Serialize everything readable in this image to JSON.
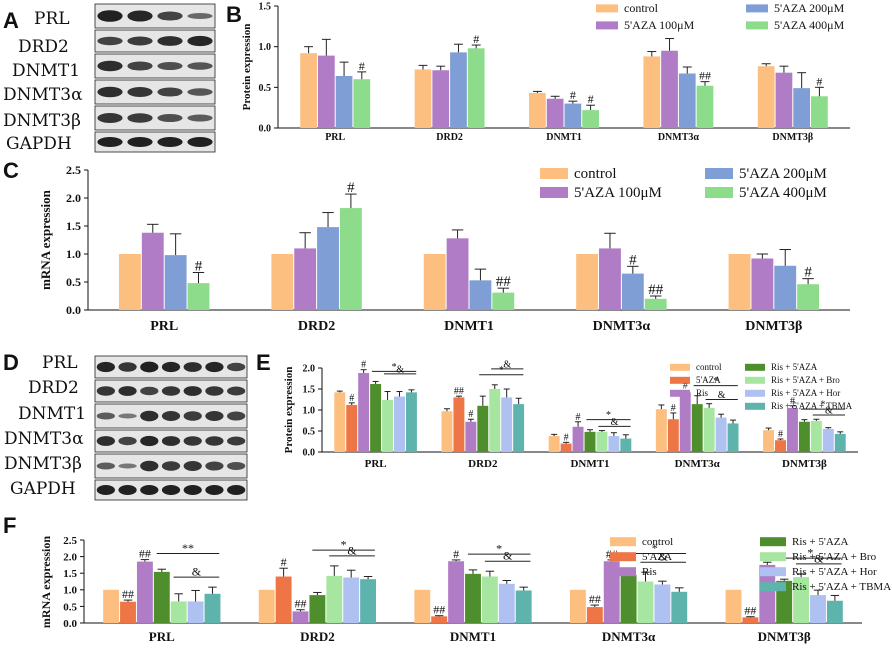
{
  "colors": {
    "control": "#fdbf7f",
    "aza": "#ee7546",
    "aza100": "#b07cc6",
    "ris": "#b07cc6",
    "aza200": "#7f9ed6",
    "aza400": "#8ddc8c",
    "ris_aza": "#4e8e2c",
    "ris_aza_bro": "#a6e6a0",
    "ris_aza_hor": "#aec1f0",
    "ris_aza_tbma": "#5fb3ad"
  },
  "panels": {
    "A": "A",
    "B": "B",
    "C": "C",
    "D": "D",
    "E": "E",
    "F": "F"
  },
  "blots": {
    "A": [
      "PRL",
      "DRD2",
      "DNMT1",
      "DNMT3α",
      "DNMT3β",
      "GAPDH"
    ],
    "D": [
      "PRL",
      "DRD2",
      "DNMT1",
      "DNMT3α",
      "DNMT3β",
      "GAPDH"
    ]
  },
  "chart_data": [
    {
      "id": "B",
      "type": "bar",
      "ylabel": "Protein expression",
      "ylim": [
        0,
        1.5
      ],
      "yticks": [
        "0.0",
        "0.5",
        "1.0",
        "1.5"
      ],
      "categories": [
        "PRL",
        "DRD2",
        "DNMT1",
        "DNMT3α",
        "DNMT3β"
      ],
      "series": [
        {
          "name": "control",
          "color_key": "control",
          "values": [
            0.92,
            0.72,
            0.43,
            0.88,
            0.76
          ],
          "errors": [
            0.08,
            0.05,
            0.02,
            0.06,
            0.03
          ]
        },
        {
          "name": "5'AZA 100μM",
          "color_key": "aza100",
          "values": [
            0.89,
            0.71,
            0.36,
            0.95,
            0.68
          ],
          "errors": [
            0.2,
            0.05,
            0.03,
            0.15,
            0.08
          ]
        },
        {
          "name": "5'AZA 200μM",
          "color_key": "aza200",
          "values": [
            0.64,
            0.93,
            0.3,
            0.67,
            0.49
          ],
          "errors": [
            0.17,
            0.1,
            0.03,
            0.08,
            0.19
          ]
        },
        {
          "name": "5'AZA 400μM",
          "color_key": "aza400",
          "values": [
            0.6,
            0.98,
            0.22,
            0.52,
            0.39
          ],
          "errors": [
            0.09,
            0.04,
            0.06,
            0.05,
            0.11
          ]
        }
      ],
      "significance": [
        {
          "cat": 0,
          "series": 3,
          "text": "#"
        },
        {
          "cat": 1,
          "series": 3,
          "text": "#"
        },
        {
          "cat": 2,
          "series": 2,
          "text": "#"
        },
        {
          "cat": 2,
          "series": 3,
          "text": "#"
        },
        {
          "cat": 3,
          "series": 3,
          "text": "##"
        },
        {
          "cat": 4,
          "series": 3,
          "text": "#"
        }
      ],
      "legend": [
        {
          "label": "control",
          "color_key": "control"
        },
        {
          "label": "5'AZA 200μM",
          "color_key": "aza200"
        },
        {
          "label": "5'AZA 100μM",
          "color_key": "aza100"
        },
        {
          "label": "5'AZA 400μM",
          "color_key": "aza400"
        }
      ]
    },
    {
      "id": "C",
      "type": "bar",
      "ylabel": "mRNA expression",
      "ylim": [
        0,
        2.5
      ],
      "yticks": [
        "0.0",
        "0.5",
        "1.0",
        "1.5",
        "2.0",
        "2.5"
      ],
      "categories": [
        "PRL",
        "DRD2",
        "DNMT1",
        "DNMT3α",
        "DNMT3β"
      ],
      "series": [
        {
          "name": "control",
          "color_key": "control",
          "values": [
            1.0,
            1.0,
            1.0,
            1.0,
            1.0
          ],
          "errors": [
            0,
            0,
            0,
            0,
            0
          ]
        },
        {
          "name": "5'AZA 100μM",
          "color_key": "aza100",
          "values": [
            1.38,
            1.1,
            1.28,
            1.1,
            0.92
          ],
          "errors": [
            0.15,
            0.28,
            0.15,
            0.27,
            0.08
          ]
        },
        {
          "name": "5'AZA 200μM",
          "color_key": "aza200",
          "values": [
            0.98,
            1.48,
            0.53,
            0.65,
            0.79
          ],
          "errors": [
            0.38,
            0.26,
            0.2,
            0.13,
            0.29
          ]
        },
        {
          "name": "5'AZA 400μM",
          "color_key": "aza400",
          "values": [
            0.48,
            1.82,
            0.31,
            0.2,
            0.46
          ],
          "errors": [
            0.19,
            0.25,
            0.08,
            0.05,
            0.1
          ]
        }
      ],
      "significance": [
        {
          "cat": 0,
          "series": 3,
          "text": "#"
        },
        {
          "cat": 1,
          "series": 3,
          "text": "#"
        },
        {
          "cat": 2,
          "series": 3,
          "text": "##"
        },
        {
          "cat": 3,
          "series": 2,
          "text": "#"
        },
        {
          "cat": 3,
          "series": 3,
          "text": "##"
        },
        {
          "cat": 4,
          "series": 3,
          "text": "#"
        }
      ],
      "legend": [
        {
          "label": "control",
          "color_key": "control"
        },
        {
          "label": "5'AZA 200μM",
          "color_key": "aza200"
        },
        {
          "label": "5'AZA 100μM",
          "color_key": "aza100"
        },
        {
          "label": "5'AZA 400μM",
          "color_key": "aza400"
        }
      ]
    },
    {
      "id": "E",
      "type": "bar",
      "ylabel": "Protein expression",
      "ylim": [
        0,
        2.0
      ],
      "yticks": [
        "0.0",
        "0.5",
        "1.0",
        "1.5",
        "2.0"
      ],
      "categories": [
        "PRL",
        "DRD2",
        "DNMT1",
        "DNMT3α",
        "DNMT3β"
      ],
      "series": [
        {
          "name": "control",
          "color_key": "control",
          "values": [
            1.42,
            0.97,
            0.38,
            1.02,
            0.52
          ],
          "errors": [
            0.03,
            0.06,
            0.04,
            0.1,
            0.05
          ]
        },
        {
          "name": "5'AZA",
          "color_key": "aza",
          "values": [
            1.12,
            1.3,
            0.2,
            0.78,
            0.28
          ],
          "errors": [
            0.05,
            0.03,
            0.03,
            0.15,
            0.03
          ]
        },
        {
          "name": "Ris",
          "color_key": "ris",
          "values": [
            1.88,
            0.72,
            0.6,
            1.42,
            1.05
          ],
          "errors": [
            0.08,
            0.06,
            0.12,
            0.04,
            0.05
          ]
        },
        {
          "name": "Ris + 5'AZA",
          "color_key": "ris_aza",
          "values": [
            1.62,
            1.1,
            0.48,
            1.14,
            0.72
          ],
          "errors": [
            0.06,
            0.23,
            0.05,
            0.2,
            0.05
          ]
        },
        {
          "name": "Ris + 5'AZA + Bro",
          "color_key": "ris_aza_bro",
          "values": [
            1.24,
            1.5,
            0.48,
            1.05,
            0.74
          ],
          "errors": [
            0.2,
            0.1,
            0.03,
            0.1,
            0.04
          ]
        },
        {
          "name": "Ris + 5'AZA + Hor",
          "color_key": "ris_aza_hor",
          "values": [
            1.32,
            1.3,
            0.38,
            0.82,
            0.55
          ],
          "errors": [
            0.12,
            0.2,
            0.08,
            0.08,
            0.03
          ]
        },
        {
          "name": "Ris + 5'AZA + TBMA",
          "color_key": "ris_aza_tbma",
          "values": [
            1.42,
            1.14,
            0.32,
            0.68,
            0.43
          ],
          "errors": [
            0.06,
            0.14,
            0.09,
            0.08,
            0.05
          ]
        }
      ],
      "significance": [
        {
          "cat": 0,
          "series": 1,
          "text": "#"
        },
        {
          "cat": 0,
          "series": 2,
          "text": "#"
        },
        {
          "cat": 1,
          "series": 1,
          "text": "##"
        },
        {
          "cat": 1,
          "series": 2,
          "text": "#"
        },
        {
          "cat": 2,
          "series": 1,
          "text": "#"
        },
        {
          "cat": 2,
          "series": 2,
          "text": "#"
        },
        {
          "cat": 3,
          "series": 1,
          "text": "#"
        },
        {
          "cat": 3,
          "series": 2,
          "text": "#"
        },
        {
          "cat": 4,
          "series": 1,
          "text": "#"
        },
        {
          "cat": 4,
          "series": 2,
          "text": "#"
        }
      ],
      "brackets": [
        {
          "cat": 0,
          "from": 3,
          "to": 6,
          "row": 1,
          "text": "*"
        },
        {
          "cat": 0,
          "from": 4,
          "to": 6,
          "row": 2,
          "text": "&"
        },
        {
          "cat": 1,
          "from": 3,
          "to": 6,
          "row": 1,
          "text": "*"
        },
        {
          "cat": 1,
          "from": 4,
          "to": 6,
          "row": 2,
          "text": "&"
        },
        {
          "cat": 2,
          "from": 3,
          "to": 6,
          "row": 1,
          "text": "*"
        },
        {
          "cat": 2,
          "from": 4,
          "to": 6,
          "row": 0,
          "text": "&"
        },
        {
          "cat": 3,
          "from": 3,
          "to": 6,
          "row": 1,
          "text": "*"
        },
        {
          "cat": 3,
          "from": 4,
          "to": 6,
          "row": 0,
          "text": "&"
        },
        {
          "cat": 4,
          "from": 3,
          "to": 6,
          "row": 1,
          "text": "*"
        },
        {
          "cat": 4,
          "from": 4,
          "to": 6,
          "row": 0,
          "text": "&"
        }
      ],
      "legend": [
        {
          "label": "control",
          "color_key": "control"
        },
        {
          "label": "Ris + 5'AZA",
          "color_key": "ris_aza"
        },
        {
          "label": "5'AZA",
          "color_key": "aza"
        },
        {
          "label": "Ris + 5'AZA + Bro",
          "color_key": "ris_aza_bro"
        },
        {
          "label": "Ris",
          "color_key": "ris"
        },
        {
          "label": "Ris + 5'AZA + Hor",
          "color_key": "ris_aza_hor"
        },
        {
          "label": "",
          "color_key": ""
        },
        {
          "label": "Ris + 5'AZA + TBMA",
          "color_key": "ris_aza_tbma"
        }
      ]
    },
    {
      "id": "F",
      "type": "bar",
      "ylabel": "mRNA expression",
      "ylim": [
        0,
        2.5
      ],
      "yticks": [
        "0.0",
        "0.5",
        "1.0",
        "1.5",
        "2.0",
        "2.5"
      ],
      "categories": [
        "PRL",
        "DRD2",
        "DNMT1",
        "DNMT3α",
        "DNMT3β"
      ],
      "series": [
        {
          "name": "control",
          "color_key": "control",
          "values": [
            1.0,
            1.0,
            1.0,
            1.0,
            1.0
          ],
          "errors": [
            0,
            0,
            0,
            0,
            0
          ]
        },
        {
          "name": "5'AZA",
          "color_key": "aza",
          "values": [
            0.64,
            1.4,
            0.2,
            0.48,
            0.17
          ],
          "errors": [
            0.05,
            0.25,
            0.02,
            0.06,
            0.02
          ]
        },
        {
          "name": "Ris",
          "color_key": "ris",
          "values": [
            1.85,
            0.35,
            1.86,
            1.86,
            1.75
          ],
          "errors": [
            0.06,
            0.05,
            0.04,
            0.04,
            0.08
          ]
        },
        {
          "name": "Ris + 5'AZA",
          "color_key": "ris_aza",
          "values": [
            1.54,
            0.84,
            1.48,
            1.45,
            1.27
          ],
          "errors": [
            0.08,
            0.08,
            0.12,
            0.17,
            0.05
          ]
        },
        {
          "name": "Ris + 5'AZA + Bro",
          "color_key": "ris_aza_bro",
          "values": [
            0.65,
            1.42,
            1.4,
            1.25,
            1.38
          ],
          "errors": [
            0.23,
            0.3,
            0.16,
            0.28,
            0.1
          ]
        },
        {
          "name": "Ris + 5'AZA + Hor",
          "color_key": "ris_aza_hor",
          "values": [
            0.65,
            1.37,
            1.18,
            1.16,
            0.84
          ],
          "errors": [
            0.33,
            0.22,
            0.1,
            0.1,
            0.15
          ]
        },
        {
          "name": "Ris + 5'AZA + TBMA",
          "color_key": "ris_aza_tbma",
          "values": [
            0.88,
            1.32,
            0.98,
            0.94,
            0.67
          ],
          "errors": [
            0.2,
            0.08,
            0.1,
            0.12,
            0.16
          ]
        }
      ],
      "significance": [
        {
          "cat": 0,
          "series": 1,
          "text": "##"
        },
        {
          "cat": 0,
          "series": 2,
          "text": "##"
        },
        {
          "cat": 1,
          "series": 1,
          "text": "#"
        },
        {
          "cat": 1,
          "series": 2,
          "text": "##"
        },
        {
          "cat": 2,
          "series": 1,
          "text": "##"
        },
        {
          "cat": 2,
          "series": 2,
          "text": "#"
        },
        {
          "cat": 3,
          "series": 1,
          "text": "##"
        },
        {
          "cat": 3,
          "series": 2,
          "text": "##"
        },
        {
          "cat": 4,
          "series": 1,
          "text": "##"
        },
        {
          "cat": 4,
          "series": 2,
          "text": "##"
        }
      ],
      "brackets": [
        {
          "cat": 0,
          "from": 3,
          "to": 6,
          "row": 2,
          "text": "**"
        },
        {
          "cat": 0,
          "from": 4,
          "to": 6,
          "row": 1,
          "text": "&"
        },
        {
          "cat": 1,
          "from": 3,
          "to": 6,
          "row": 2,
          "text": "*"
        },
        {
          "cat": 1,
          "from": 4,
          "to": 6,
          "row": 1,
          "text": "&"
        },
        {
          "cat": 2,
          "from": 3,
          "to": 6,
          "row": 2,
          "text": "*"
        },
        {
          "cat": 2,
          "from": 4,
          "to": 6,
          "row": 1,
          "text": "&"
        },
        {
          "cat": 3,
          "from": 3,
          "to": 6,
          "row": 2,
          "text": "*"
        },
        {
          "cat": 3,
          "from": 4,
          "to": 6,
          "row": 1,
          "text": "&"
        },
        {
          "cat": 4,
          "from": 3,
          "to": 6,
          "row": 2,
          "text": "*"
        },
        {
          "cat": 4,
          "from": 4,
          "to": 6,
          "row": 1,
          "text": "&"
        }
      ],
      "legend": [
        {
          "label": "control",
          "color_key": "control"
        },
        {
          "label": "Ris + 5'AZA",
          "color_key": "ris_aza"
        },
        {
          "label": "5'AZA",
          "color_key": "aza"
        },
        {
          "label": "Ris + 5'AZA + Bro",
          "color_key": "ris_aza_bro"
        },
        {
          "label": "Ris",
          "color_key": "ris"
        },
        {
          "label": "Ris + 5'AZA + Hor",
          "color_key": "ris_aza_hor"
        },
        {
          "label": "",
          "color_key": ""
        },
        {
          "label": "Ris + 5'AZA + TBMA",
          "color_key": "ris_aza_tbma"
        }
      ]
    }
  ]
}
